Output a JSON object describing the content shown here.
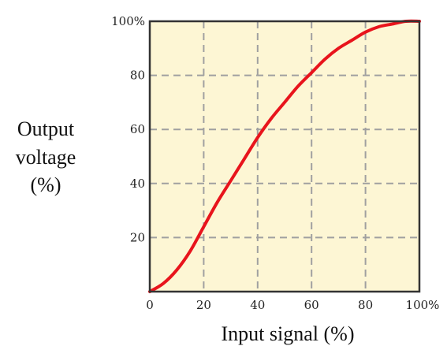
{
  "chart_data": {
    "type": "line",
    "xlabel": "Input signal (%)",
    "ylabel_lines": [
      "Output",
      "voltage",
      "(%)"
    ],
    "x_ticks": [
      "0",
      "20",
      "40",
      "60",
      "80",
      "100%"
    ],
    "y_ticks": [
      "20",
      "40",
      "60",
      "80",
      "100%"
    ],
    "xlim": [
      0,
      100
    ],
    "ylim": [
      0,
      100
    ],
    "grid": true,
    "series": [
      {
        "x": [
          0,
          5,
          10,
          15,
          20,
          25,
          30,
          35,
          40,
          45,
          50,
          55,
          60,
          65,
          70,
          75,
          80,
          85,
          90,
          95,
          100
        ],
        "y": [
          0,
          3,
          8,
          15,
          24,
          33,
          41,
          49,
          57,
          64,
          70,
          76,
          81,
          86,
          90,
          93,
          96,
          98,
          99,
          100,
          100
        ]
      }
    ]
  },
  "colors": {
    "plot_background": "#fdf6d4",
    "grid": "#a0a0a0",
    "curve": "#e8141c",
    "frame": "#333333"
  }
}
